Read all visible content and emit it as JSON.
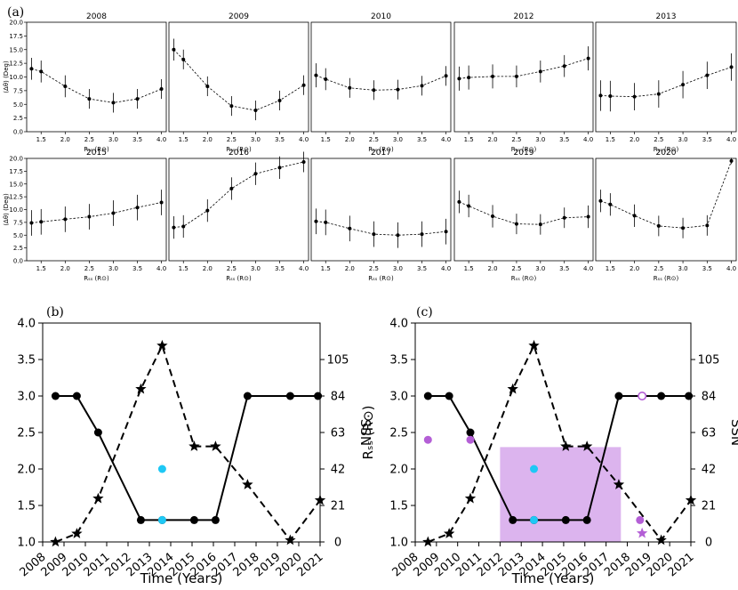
{
  "chart_data": [
    {
      "type": "line",
      "panel_label": "(a)",
      "layout": "2x5 small multiples with error bars",
      "ylabel": "⟨Δθ⟩ (Deg)",
      "xlabel": "Rₛₛ (R⊙)",
      "x": [
        1.3,
        1.5,
        2.0,
        2.5,
        3.0,
        3.5,
        4.0
      ],
      "xlim": [
        1.2,
        4.1
      ],
      "ylim": [
        0,
        20
      ],
      "xticks": [
        "1.5",
        "2.0",
        "2.5",
        "3.0",
        "3.5",
        "4.0"
      ],
      "yticks": [
        "0.0",
        "2.5",
        "5.0",
        "7.5",
        "10.0",
        "12.5",
        "15.0",
        "17.5",
        "20.0"
      ],
      "panels": [
        {
          "title": "2008",
          "y": [
            11.5,
            11.0,
            8.3,
            6.0,
            5.3,
            6.0,
            7.8
          ],
          "err": [
            2.0,
            2.0,
            2.0,
            1.8,
            1.8,
            1.8,
            1.8
          ]
        },
        {
          "title": "2009",
          "y": [
            15.0,
            13.2,
            8.3,
            4.7,
            3.9,
            5.7,
            8.5
          ],
          "err": [
            2.0,
            1.8,
            1.8,
            1.8,
            1.8,
            1.8,
            1.8
          ]
        },
        {
          "title": "2010",
          "y": [
            10.3,
            9.6,
            8.0,
            7.6,
            7.7,
            8.4,
            10.2
          ],
          "err": [
            2.2,
            2.0,
            1.8,
            1.8,
            1.8,
            1.8,
            1.8
          ]
        },
        {
          "title": "2012",
          "y": [
            9.7,
            9.9,
            10.1,
            10.1,
            11.0,
            12.0,
            13.4
          ],
          "err": [
            2.2,
            2.2,
            2.2,
            2.0,
            2.0,
            2.0,
            2.2
          ]
        },
        {
          "title": "2013",
          "y": [
            6.6,
            6.5,
            6.4,
            6.9,
            8.6,
            10.3,
            11.8
          ],
          "err": [
            2.8,
            2.8,
            2.5,
            2.5,
            2.5,
            2.5,
            2.5
          ]
        },
        {
          "title": "2015",
          "y": [
            7.4,
            7.6,
            8.1,
            8.6,
            9.3,
            10.4,
            11.4
          ],
          "err": [
            2.5,
            2.5,
            2.5,
            2.5,
            2.5,
            2.5,
            2.5
          ]
        },
        {
          "title": "2016",
          "y": [
            6.5,
            6.7,
            9.8,
            14.1,
            17.0,
            18.2,
            19.3
          ],
          "err": [
            2.2,
            2.2,
            2.2,
            2.2,
            2.2,
            2.2,
            2.0
          ]
        },
        {
          "title": "2017",
          "y": [
            7.7,
            7.5,
            6.3,
            5.2,
            5.0,
            5.2,
            5.7
          ],
          "err": [
            2.5,
            2.5,
            2.5,
            2.5,
            2.5,
            2.5,
            2.5
          ]
        },
        {
          "title": "2019",
          "y": [
            11.5,
            10.7,
            8.7,
            7.2,
            7.1,
            8.4,
            8.6
          ],
          "err": [
            2.2,
            2.2,
            2.2,
            2.0,
            2.0,
            2.0,
            2.2
          ]
        },
        {
          "title": "2020",
          "y": [
            11.7,
            11.0,
            8.8,
            6.8,
            6.4,
            6.9,
            19.5
          ],
          "err": [
            2.2,
            2.2,
            2.2,
            2.0,
            2.0,
            2.0,
            0.6
          ]
        }
      ]
    },
    {
      "type": "line",
      "panel_label": "(b)",
      "xlabel": "Time (Years)",
      "ylabel_left": "Rₛₛ (R⊙)",
      "ylabel_right": "SSN",
      "xlim": [
        2008,
        2021
      ],
      "xticks": [
        "2008",
        "2009",
        "2010",
        "2011",
        "2012",
        "2013",
        "2014",
        "2015",
        "2016",
        "2017",
        "2018",
        "2019",
        "2020",
        "2021"
      ],
      "ylim_left": [
        1.0,
        4.0
      ],
      "yticks_left": [
        "1.0",
        "1.5",
        "2.0",
        "2.5",
        "3.0",
        "3.5",
        "4.0"
      ],
      "ylim_right": [
        0,
        126
      ],
      "yticks_right": [
        "0",
        "21",
        "42",
        "63",
        "84",
        "105"
      ],
      "series": [
        {
          "name": "Rss",
          "axis": "left",
          "style": "solid-circle",
          "color": "#000000",
          "x": [
            2008.6,
            2009.6,
            2010.6,
            2012.6,
            2013.6,
            2015.1,
            2016.1,
            2017.6,
            2019.6,
            2020.9
          ],
          "y": [
            3.0,
            3.0,
            2.5,
            1.3,
            1.3,
            1.3,
            1.3,
            3.0,
            3.0,
            3.0
          ]
        },
        {
          "name": "SSN",
          "axis": "right",
          "style": "dashed-star",
          "color": "#000000",
          "x": [
            2008.6,
            2009.6,
            2010.6,
            2012.6,
            2013.6,
            2015.1,
            2016.1,
            2017.6,
            2019.6,
            2021.0
          ],
          "y": [
            0,
            4.8,
            25,
            88,
            113,
            55,
            55,
            33,
            1,
            24
          ]
        },
        {
          "name": "Rss-cyan",
          "axis": "left",
          "style": "circle",
          "color": "#1ec8f5",
          "x": [
            2013.6,
            2013.6
          ],
          "y": [
            2.0,
            1.3
          ]
        }
      ]
    },
    {
      "type": "line",
      "panel_label": "(c)",
      "xlabel": "Time (Years)",
      "ylabel_left": "Rₛₛ (R⊙)",
      "ylabel_right": "SSN",
      "xlim": [
        2008,
        2021
      ],
      "xticks": [
        "2008",
        "2009",
        "2010",
        "2011",
        "2012",
        "2013",
        "2014",
        "2015",
        "2016",
        "2017",
        "2018",
        "2019",
        "2020",
        "2021"
      ],
      "ylim_left": [
        1.0,
        4.0
      ],
      "yticks_left": [
        "1.0",
        "1.5",
        "2.0",
        "2.5",
        "3.0",
        "3.5",
        "4.0"
      ],
      "ylim_right": [
        0,
        126
      ],
      "yticks_right": [
        "0",
        "21",
        "42",
        "63",
        "84",
        "105"
      ],
      "shaded_region": {
        "x": [
          2012.0,
          2017.7
        ],
        "y": [
          1.0,
          2.3
        ],
        "color": "#dcb4ee"
      },
      "series": [
        {
          "name": "Rss",
          "axis": "left",
          "style": "solid-circle",
          "color": "#000000",
          "x": [
            2008.6,
            2009.6,
            2010.6,
            2012.6,
            2013.6,
            2015.1,
            2016.1,
            2017.6,
            2019.6,
            2020.9
          ],
          "y": [
            3.0,
            3.0,
            2.5,
            1.3,
            1.3,
            1.3,
            1.3,
            3.0,
            3.0,
            3.0
          ]
        },
        {
          "name": "SSN",
          "axis": "right",
          "style": "dashed-star",
          "color": "#000000",
          "x": [
            2008.6,
            2009.6,
            2010.6,
            2012.6,
            2013.6,
            2015.1,
            2016.1,
            2017.6,
            2019.6,
            2021.0
          ],
          "y": [
            0,
            4.8,
            25,
            88,
            113,
            55,
            55,
            33,
            1,
            24
          ]
        },
        {
          "name": "Rss-cyan",
          "axis": "left",
          "style": "circle",
          "color": "#1ec8f5",
          "x": [
            2013.6,
            2013.6
          ],
          "y": [
            2.0,
            1.3
          ]
        },
        {
          "name": "Rss-purple",
          "axis": "left",
          "style": "circle",
          "color": "#b45fd6",
          "x": [
            2008.6,
            2010.6,
            2018.6
          ],
          "y": [
            2.4,
            2.4,
            1.3
          ]
        },
        {
          "name": "Rss-purple-open",
          "axis": "left",
          "style": "open-circle",
          "color": "#b45fd6",
          "x": [
            2018.7
          ],
          "y": [
            3.0
          ]
        },
        {
          "name": "SSN-purple",
          "axis": "right",
          "style": "star",
          "color": "#b45fd6",
          "x": [
            2018.7
          ],
          "y": [
            5
          ]
        }
      ]
    }
  ]
}
